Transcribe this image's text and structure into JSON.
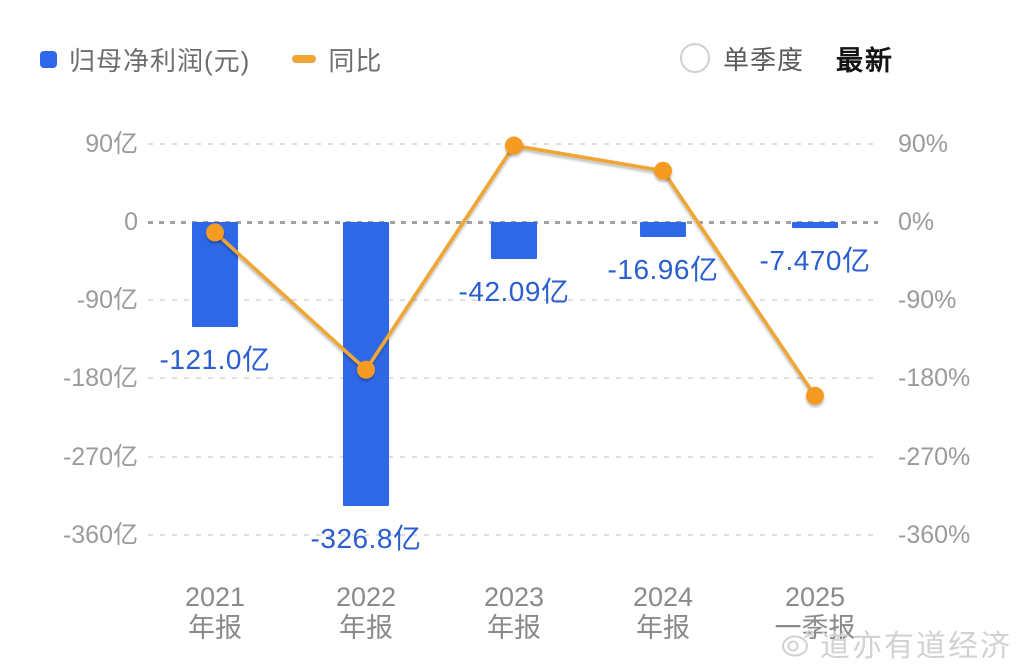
{
  "legend": {
    "profit": {
      "label": "归母净利润(元)"
    },
    "yoy": {
      "label": "同比"
    }
  },
  "controls": {
    "quarter_toggle_label": "单季度",
    "quarter_toggle_checked": false,
    "latest_label": "最新"
  },
  "watermark": {
    "text": "道亦有道经济"
  },
  "colors": {
    "bar": "#2f68e6",
    "bar_value_label": "#2a5ed0",
    "line": "#efa636",
    "point": "#f59b20",
    "grid": "#dedede",
    "zero_grid": "#a2a2a2",
    "tick_text": "#9b9b9b"
  },
  "chart_data": {
    "type": "bar",
    "title": "",
    "categories": [
      "2021年报",
      "2022年报",
      "2023年报",
      "2024年报",
      "2025一季报"
    ],
    "category_lines": [
      [
        "2021",
        "年报"
      ],
      [
        "2022",
        "年报"
      ],
      [
        "2023",
        "年报"
      ],
      [
        "2024",
        "年报"
      ],
      [
        "2025",
        "一季报"
      ]
    ],
    "series": [
      {
        "name": "归母净利润(元)",
        "type": "bar",
        "axis": "left",
        "unit": "亿",
        "values": [
          -121.0,
          -326.8,
          -42.09,
          -16.96,
          -7.47
        ],
        "value_labels": [
          "-121.0亿",
          "-326.8亿",
          "-42.09亿",
          "-16.96亿",
          "-7.470亿"
        ]
      },
      {
        "name": "同比",
        "type": "line",
        "axis": "right",
        "unit": "%",
        "values": [
          -12,
          -170,
          88,
          59,
          -200
        ]
      }
    ],
    "left_axis": {
      "tick_values": [
        90,
        0,
        -90,
        -180,
        -270,
        -360
      ],
      "tick_labels": [
        "90亿",
        "0",
        "-90亿",
        "-180亿",
        "-270亿",
        "-360亿"
      ],
      "range": [
        -400,
        110
      ]
    },
    "right_axis": {
      "tick_values": [
        90,
        0,
        -90,
        -180,
        -270,
        -360
      ],
      "tick_labels": [
        "90%",
        "0%",
        "-90%",
        "-180%",
        "-270%",
        "-360%"
      ],
      "range": [
        -400,
        110
      ]
    },
    "grid": "dashed-horizontal",
    "legend_position": "top-left"
  }
}
